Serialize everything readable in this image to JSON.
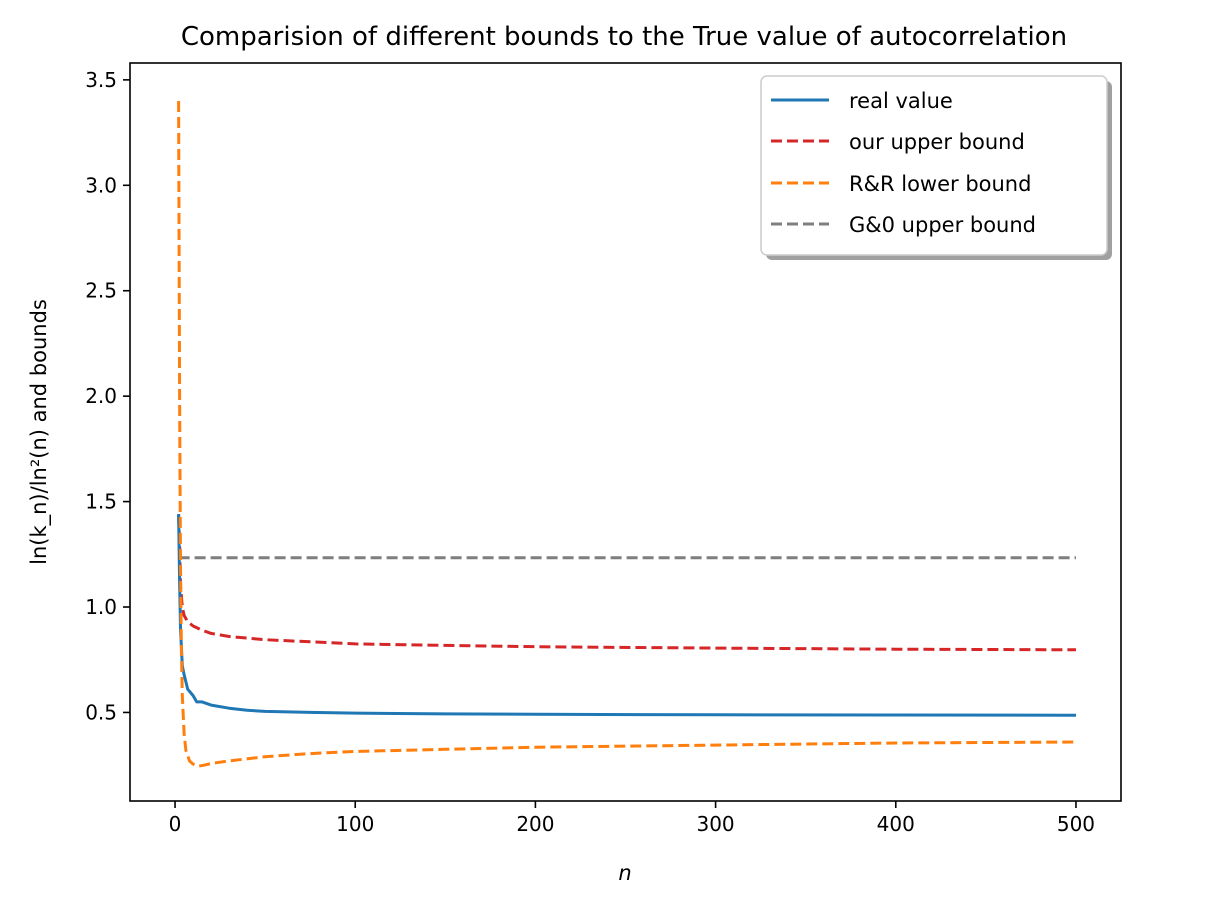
{
  "chart_data": {
    "type": "line",
    "title": "Comparision of different bounds to the True value of autocorrelation",
    "xlabel": "n",
    "ylabel": "ln(k_n)/ln²(n) and bounds",
    "xlim": [
      -25,
      525
    ],
    "ylim": [
      0.08,
      3.58
    ],
    "xticks": [
      0,
      100,
      200,
      300,
      400,
      500
    ],
    "yticks": [
      0.5,
      1.0,
      1.5,
      2.0,
      2.5,
      3.0,
      3.5
    ],
    "xtick_labels": [
      "0",
      "100",
      "200",
      "300",
      "400",
      "500"
    ],
    "ytick_labels": [
      "0.5",
      "1.0",
      "1.5",
      "2.0",
      "2.5",
      "3.0",
      "3.5"
    ],
    "grid": false,
    "legend_position": "top-right",
    "series": [
      {
        "name": "real value",
        "color": "#1f77b4",
        "style": "solid",
        "x": [
          2,
          2.5,
          3,
          4,
          5,
          7,
          10,
          12,
          15,
          20,
          30,
          40,
          50,
          75,
          100,
          150,
          200,
          300,
          400,
          500
        ],
        "y": [
          1.44,
          1.12,
          0.9,
          0.72,
          0.68,
          0.61,
          0.58,
          0.55,
          0.55,
          0.535,
          0.52,
          0.51,
          0.505,
          0.5,
          0.497,
          0.493,
          0.491,
          0.489,
          0.488,
          0.487
        ]
      },
      {
        "name": "our upper bound",
        "color": "#d62728",
        "style": "dashed",
        "x": [
          2,
          2.5,
          3,
          4,
          5,
          7,
          10,
          15,
          20,
          30,
          50,
          75,
          100,
          150,
          200,
          300,
          400,
          500
        ],
        "y": [
          1.44,
          1.3,
          1.1,
          1.0,
          0.96,
          0.93,
          0.91,
          0.89,
          0.875,
          0.86,
          0.845,
          0.835,
          0.825,
          0.818,
          0.812,
          0.805,
          0.8,
          0.797
        ]
      },
      {
        "name": "R&R lower bound",
        "color": "#ff7f0e",
        "style": "dashed",
        "x": [
          2,
          2.5,
          3,
          3.5,
          4,
          5,
          6,
          8,
          10,
          13,
          16,
          20,
          30,
          50,
          75,
          100,
          150,
          200,
          300,
          400,
          500
        ],
        "y": [
          3.4,
          2.0,
          1.2,
          0.8,
          0.58,
          0.4,
          0.32,
          0.27,
          0.255,
          0.245,
          0.25,
          0.258,
          0.27,
          0.29,
          0.305,
          0.315,
          0.325,
          0.335,
          0.345,
          0.355,
          0.36
        ]
      },
      {
        "name": "G&0 upper bound",
        "color": "#7f7f7f",
        "style": "dashed",
        "x": [
          2,
          500
        ],
        "y": [
          1.234,
          1.234
        ]
      }
    ]
  }
}
